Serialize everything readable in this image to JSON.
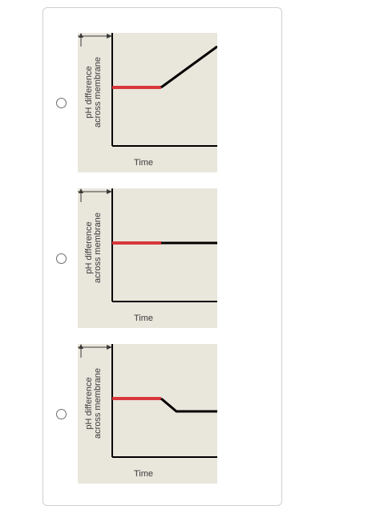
{
  "question": {
    "options": [
      {
        "id": "a",
        "ylabel_line1": "pH difference",
        "ylabel_line2": "across membrane",
        "xlabel": "Time",
        "trend": "increase"
      },
      {
        "id": "b",
        "ylabel_line1": "pH difference",
        "ylabel_line2": "across membrane",
        "xlabel": "Time",
        "trend": "constant"
      },
      {
        "id": "c",
        "ylabel_line1": "pH difference",
        "ylabel_line2": "across membrane",
        "xlabel": "Time",
        "trend": "decrease"
      }
    ],
    "colors": {
      "baseline": "#d8373a",
      "line": "#000000",
      "plot_bg": "#e9e6dc"
    }
  }
}
